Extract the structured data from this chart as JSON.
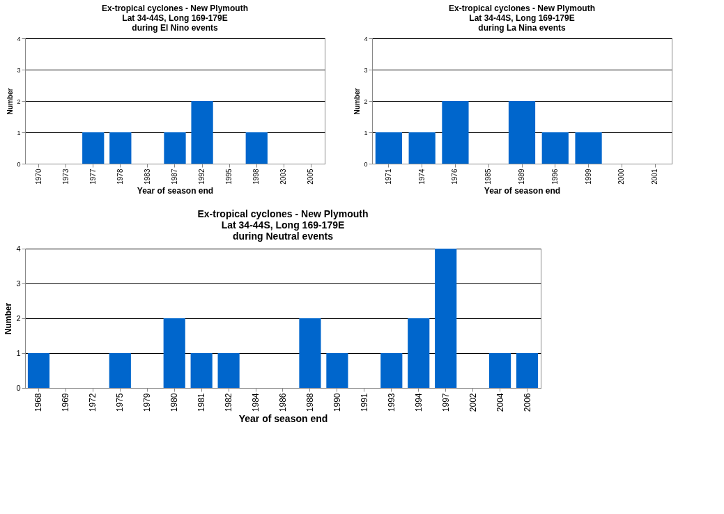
{
  "chart_data": [
    {
      "type": "bar",
      "title": "Ex-tropical cyclones - New Plymouth\nLat 34-44S, Long 169-179E\nduring El Nino events",
      "xlabel": "Year of season end",
      "ylabel": "Number",
      "categories": [
        "1970",
        "1973",
        "1977",
        "1978",
        "1983",
        "1987",
        "1992",
        "1995",
        "1998",
        "2003",
        "2005"
      ],
      "values": [
        0,
        0,
        1,
        1,
        0,
        1,
        2,
        0,
        1,
        0,
        0
      ],
      "color": "#0066cc",
      "ylim": [
        0,
        4
      ],
      "yticks": [
        0,
        1,
        2,
        3,
        4
      ],
      "grid": "y"
    },
    {
      "type": "bar",
      "title": "Ex-tropical cyclones - New Plymouth\nLat 34-44S, Long 169-179E\nduring La Nina events",
      "xlabel": "Year of season end",
      "ylabel": "Number",
      "categories": [
        "1971",
        "1974",
        "1976",
        "1985",
        "1989",
        "1996",
        "1999",
        "2000",
        "2001"
      ],
      "values": [
        1,
        1,
        2,
        0,
        2,
        1,
        1,
        0,
        0
      ],
      "color": "#0066cc",
      "ylim": [
        0,
        4
      ],
      "yticks": [
        0,
        1,
        2,
        3,
        4
      ],
      "grid": "y"
    },
    {
      "type": "bar",
      "title": "Ex-tropical cyclones - New Plymouth\nLat 34-44S, Long 169-179E\nduring Neutral events",
      "xlabel": "Year of season end",
      "ylabel": "Number",
      "categories": [
        "1968",
        "1969",
        "1972",
        "1975",
        "1979",
        "1980",
        "1981",
        "1982",
        "1984",
        "1986",
        "1988",
        "1990",
        "1991",
        "1993",
        "1994",
        "1997",
        "2002",
        "2004",
        "2006"
      ],
      "values": [
        1,
        0,
        0,
        1,
        0,
        2,
        1,
        1,
        0,
        0,
        2,
        1,
        0,
        1,
        2,
        4,
        0,
        1,
        1
      ],
      "color": "#0066cc",
      "ylim": [
        0,
        4
      ],
      "yticks": [
        0,
        1,
        2,
        3,
        4
      ],
      "grid": "y"
    }
  ]
}
